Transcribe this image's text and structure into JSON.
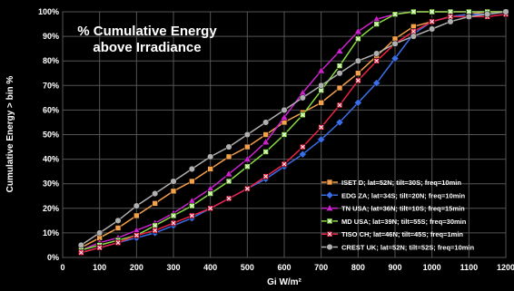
{
  "chart_data": {
    "type": "line",
    "title": "% Cumulative Energy",
    "subtitle": "above Irradiance",
    "xlabel": "Gi W/m²",
    "ylabel": "Cumulative Energy > bin %",
    "xlim": [
      0,
      1200
    ],
    "ylim": [
      0,
      100
    ],
    "x_ticks": [
      0,
      100,
      200,
      300,
      400,
      500,
      600,
      700,
      800,
      900,
      1000,
      1100,
      1200
    ],
    "y_ticks": [
      0,
      10,
      20,
      30,
      40,
      50,
      60,
      70,
      80,
      90,
      100
    ],
    "y_tick_labels": [
      "0%",
      "10%",
      "20%",
      "30%",
      "40%",
      "50%",
      "60%",
      "70%",
      "80%",
      "90%",
      "100%"
    ],
    "grid": true,
    "legend_position": "bottom-right",
    "x": [
      50,
      100,
      150,
      200,
      250,
      300,
      350,
      400,
      450,
      500,
      550,
      600,
      650,
      700,
      750,
      800,
      850,
      900,
      950,
      1000,
      1050,
      1100,
      1150,
      1200
    ],
    "series": [
      {
        "name": "ISET D;  lat=52N; tilt=30S; freq=10min",
        "color": "#f5a04a",
        "marker": "square",
        "values": [
          4,
          8,
          12,
          17,
          22,
          27,
          31,
          36,
          41,
          45,
          50,
          55,
          59,
          63,
          69,
          75,
          82,
          89,
          94,
          96,
          98,
          99,
          100,
          100
        ]
      },
      {
        "name": "EDG ZA;  lat=34S; tilt=20N; freq=10min",
        "color": "#3a6ee8",
        "marker": "diamond",
        "values": [
          2,
          4,
          6,
          8,
          10,
          13,
          16,
          20,
          24,
          28,
          32,
          37,
          42,
          48,
          55,
          63,
          71,
          81,
          91,
          96,
          98,
          99,
          99,
          100
        ]
      },
      {
        "name": "TN USA;  lat=36N; tilt=10S; freq=15min",
        "color": "#cc22cc",
        "marker": "triangle",
        "values": [
          3,
          6,
          8,
          11,
          14,
          18,
          23,
          28,
          34,
          40,
          47,
          57,
          67,
          76,
          84,
          92,
          97,
          99,
          100,
          100,
          100,
          100,
          100,
          100
        ]
      },
      {
        "name": "MD USA;  lat=39N; tilt=55S; freq=30min",
        "color": "#88dd44",
        "marker": "square-x",
        "values": [
          3,
          5,
          7,
          9,
          13,
          17,
          21,
          26,
          31,
          37,
          43,
          50,
          58,
          68,
          78,
          89,
          95,
          99,
          100,
          100,
          100,
          100,
          100,
          100
        ]
      },
      {
        "name": "TISO CH;  lat=46N; tilt=45S; freq=1min",
        "color": "#ee2244",
        "marker": "square-x",
        "values": [
          2,
          4,
          6,
          9,
          11,
          14,
          17,
          20,
          24,
          28,
          33,
          38,
          45,
          53,
          62,
          72,
          80,
          87,
          92,
          96,
          98,
          98,
          98,
          99
        ]
      },
      {
        "name": "CREST UK;  lat=52N; tilt=52S; freq=10min",
        "color": "#b0b0b0",
        "marker": "circle",
        "values": [
          5,
          10,
          15,
          21,
          26,
          31,
          36,
          41,
          45,
          50,
          55,
          60,
          65,
          70,
          75,
          80,
          83,
          87,
          90,
          93,
          96,
          98,
          99,
          100
        ]
      }
    ]
  }
}
